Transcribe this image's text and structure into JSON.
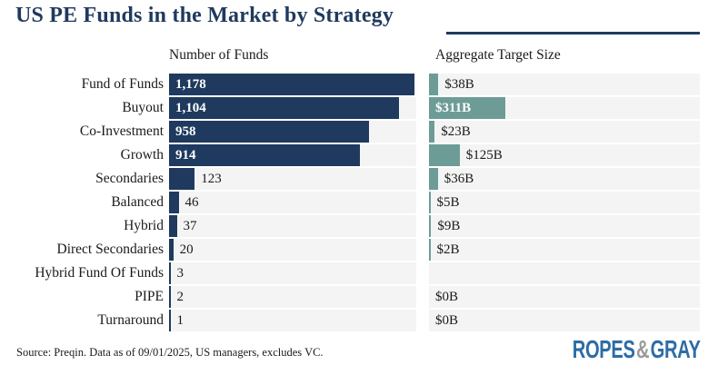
{
  "title": "US PE Funds in the Market by Strategy",
  "columns": {
    "funds": "Number of Funds",
    "size": "Aggregate Target Size"
  },
  "source": "Source: Preqin. Data as of 09/01/2025, US managers, excludes VC.",
  "logo": {
    "ropes": "ROPES",
    "amp": "&",
    "gray": "GRAY"
  },
  "colors": {
    "navy_bar": "#1f3a5e",
    "teal_bar": "#6d9c97",
    "row_band": "#f4f4f4",
    "title_navy": "#1e3a5e",
    "logo_blue": "#2d6da6",
    "logo_gray": "#9b9b9b",
    "text": "#1a1a1a"
  },
  "chart_data": {
    "type": "bar",
    "orientation": "horizontal",
    "title": "US PE Funds in the Market by Strategy",
    "categories": [
      "Fund of Funds",
      "Buyout",
      "Co-Investment",
      "Growth",
      "Secondaries",
      "Balanced",
      "Hybrid",
      "Direct Secondaries",
      "Hybrid Fund Of Funds",
      "PIPE",
      "Turnaround"
    ],
    "series": [
      {
        "name": "Number of Funds",
        "values": [
          1178,
          1104,
          958,
          914,
          123,
          46,
          37,
          20,
          3,
          2,
          1
        ],
        "labels": [
          "1,178",
          "1,104",
          "958",
          "914",
          "123",
          "46",
          "37",
          "20",
          "3",
          "2",
          "1"
        ]
      },
      {
        "name": "Aggregate Target Size ($B)",
        "values": [
          38,
          311,
          23,
          125,
          36,
          5,
          9,
          2,
          null,
          0,
          0
        ],
        "labels": [
          "$38B",
          "$311B",
          "$23B",
          "$125B",
          "$36B",
          "$5B",
          "$9B",
          "$2B",
          "",
          "$0B",
          "$0B"
        ]
      }
    ],
    "xlim_funds": [
      0,
      1178
    ],
    "xlim_size": [
      0,
      311
    ],
    "grid": false,
    "legend": "column headers above each bar group"
  }
}
